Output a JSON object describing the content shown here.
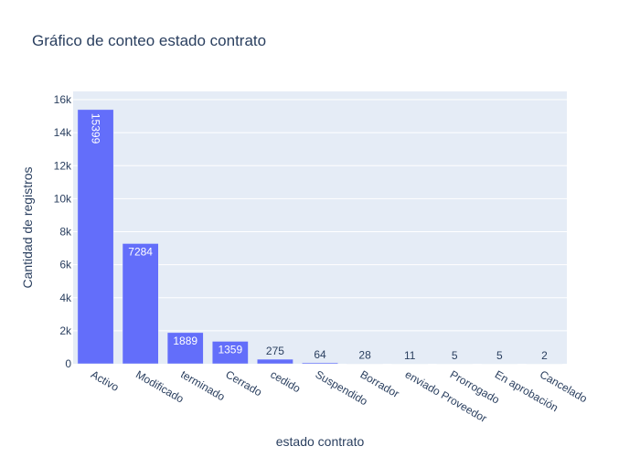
{
  "chart_data": {
    "type": "bar",
    "title": "Gráfico de conteo estado contrato",
    "xlabel": "estado contrato",
    "ylabel": "Cantidad de registros",
    "categories": [
      "Activo",
      "Modificado",
      "terminado",
      "Cerrado",
      "cedido",
      "Suspendido",
      "Borrador",
      "enviado Proveedor",
      "Prorrogado",
      "En aprobación",
      "Cancelado"
    ],
    "values": [
      15399,
      7284,
      1889,
      1359,
      275,
      64,
      28,
      11,
      5,
      5,
      2
    ],
    "data_labels": [
      "15399",
      "7284",
      "1889",
      "1359",
      "275",
      "64",
      "28",
      "11",
      "5",
      "5",
      "2"
    ],
    "ylim": [
      0,
      16500
    ],
    "yticks": [
      0,
      2000,
      4000,
      6000,
      8000,
      10000,
      12000,
      14000,
      16000
    ],
    "ytick_labels": [
      "0",
      "2k",
      "4k",
      "6k",
      "8k",
      "10k",
      "12k",
      "14k",
      "16k"
    ],
    "grid": true,
    "colors": {
      "bar": "#636efa",
      "plot_bg": "#e5ecf6",
      "grid": "#ffffff",
      "text": "#2a3f5f",
      "label_inside": "#ffffff"
    }
  }
}
